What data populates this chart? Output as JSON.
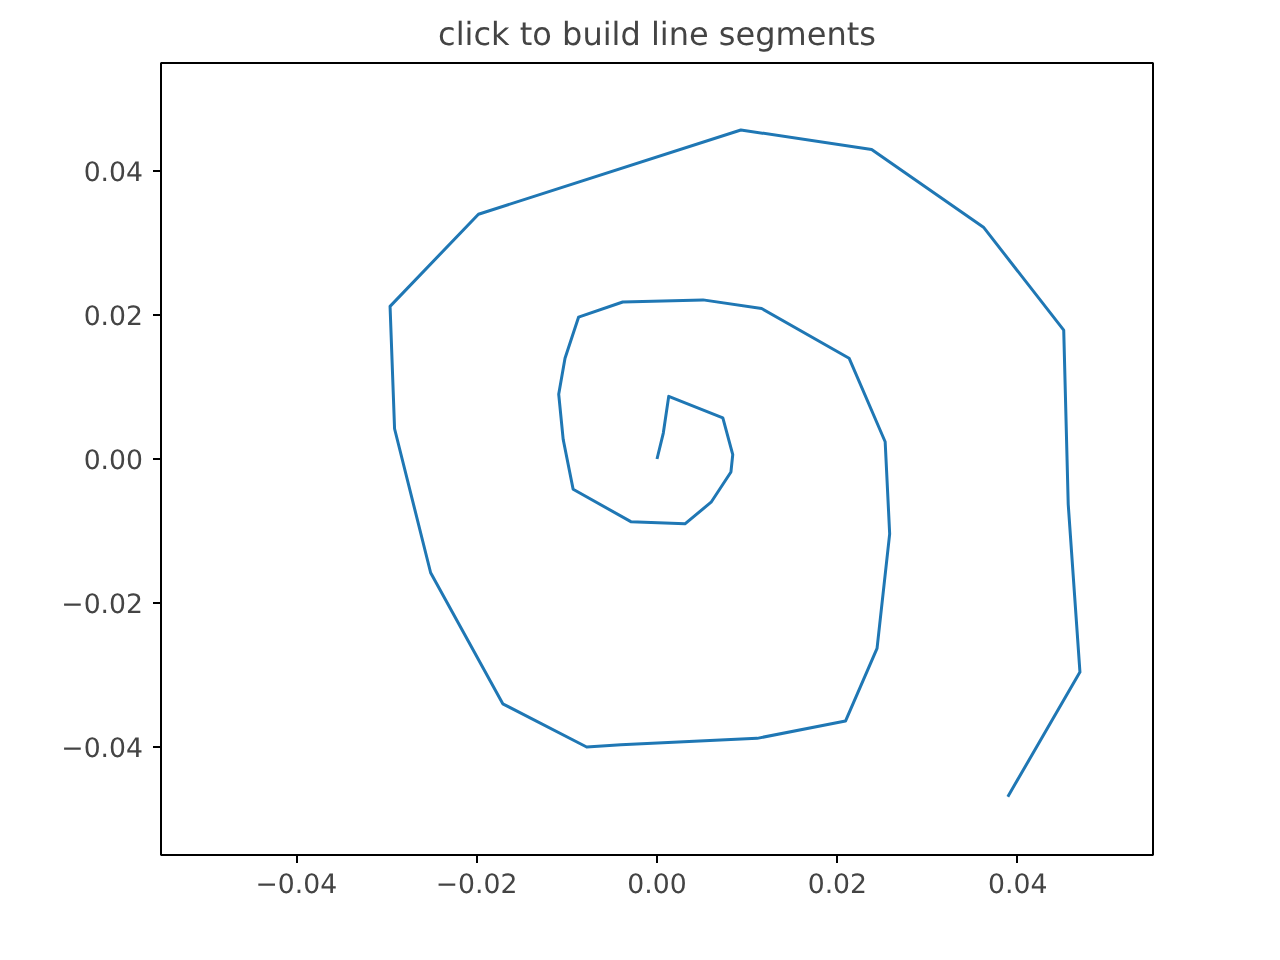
{
  "chart_data": {
    "type": "line",
    "title": "click to build line segments",
    "x": [
      0,
      0.0007,
      0.0013,
      0.0073,
      0.0084,
      0.0082,
      0.006,
      0.0031,
      -0.0029,
      -0.0093,
      -0.0104,
      -0.0109,
      -0.0102,
      -0.0087,
      -0.0038,
      0.0051,
      0.0116,
      0.0213,
      0.0253,
      0.0258,
      0.0244,
      0.0209,
      0.0111,
      -0.004,
      -0.0078,
      -0.0171,
      -0.0251,
      -0.0291,
      -0.0296,
      -0.0198,
      0.0093,
      0.0238,
      0.0362,
      0.0451,
      0.0456,
      0.0469,
      0.0389
    ],
    "series": [
      {
        "color": "#1f77b4",
        "values": [
          0,
          0.0036,
          0.0087,
          0.0057,
          0.0006,
          -0.0018,
          -0.006,
          -0.009,
          -0.0087,
          -0.0042,
          0.0027,
          0.009,
          0.014,
          0.0197,
          0.0218,
          0.0221,
          0.0209,
          0.014,
          0.0024,
          -0.0104,
          -0.0263,
          -0.0364,
          -0.0388,
          -0.0397,
          -0.04,
          -0.034,
          -0.0158,
          0.0042,
          0.0212,
          0.034,
          0.0457,
          0.043,
          0.0322,
          0.0179,
          -0.0063,
          -0.0296,
          -0.0469
        ]
      }
    ],
    "xlim": [
      -0.055,
      0.055
    ],
    "ylim": [
      -0.055,
      0.055
    ],
    "xticks": [
      {
        "value": -0.04,
        "label": "−0.04"
      },
      {
        "value": -0.02,
        "label": "−0.02"
      },
      {
        "value": 0,
        "label": "0.00"
      },
      {
        "value": 0.02,
        "label": "0.02"
      },
      {
        "value": 0.04,
        "label": "0.04"
      }
    ],
    "yticks": [
      {
        "value": -0.04,
        "label": "−0.04"
      },
      {
        "value": -0.02,
        "label": "−0.02"
      },
      {
        "value": 0,
        "label": "0.00"
      },
      {
        "value": 0.02,
        "label": "0.02"
      },
      {
        "value": 0.04,
        "label": "0.04"
      }
    ],
    "grid": false,
    "line_style": "solid"
  }
}
